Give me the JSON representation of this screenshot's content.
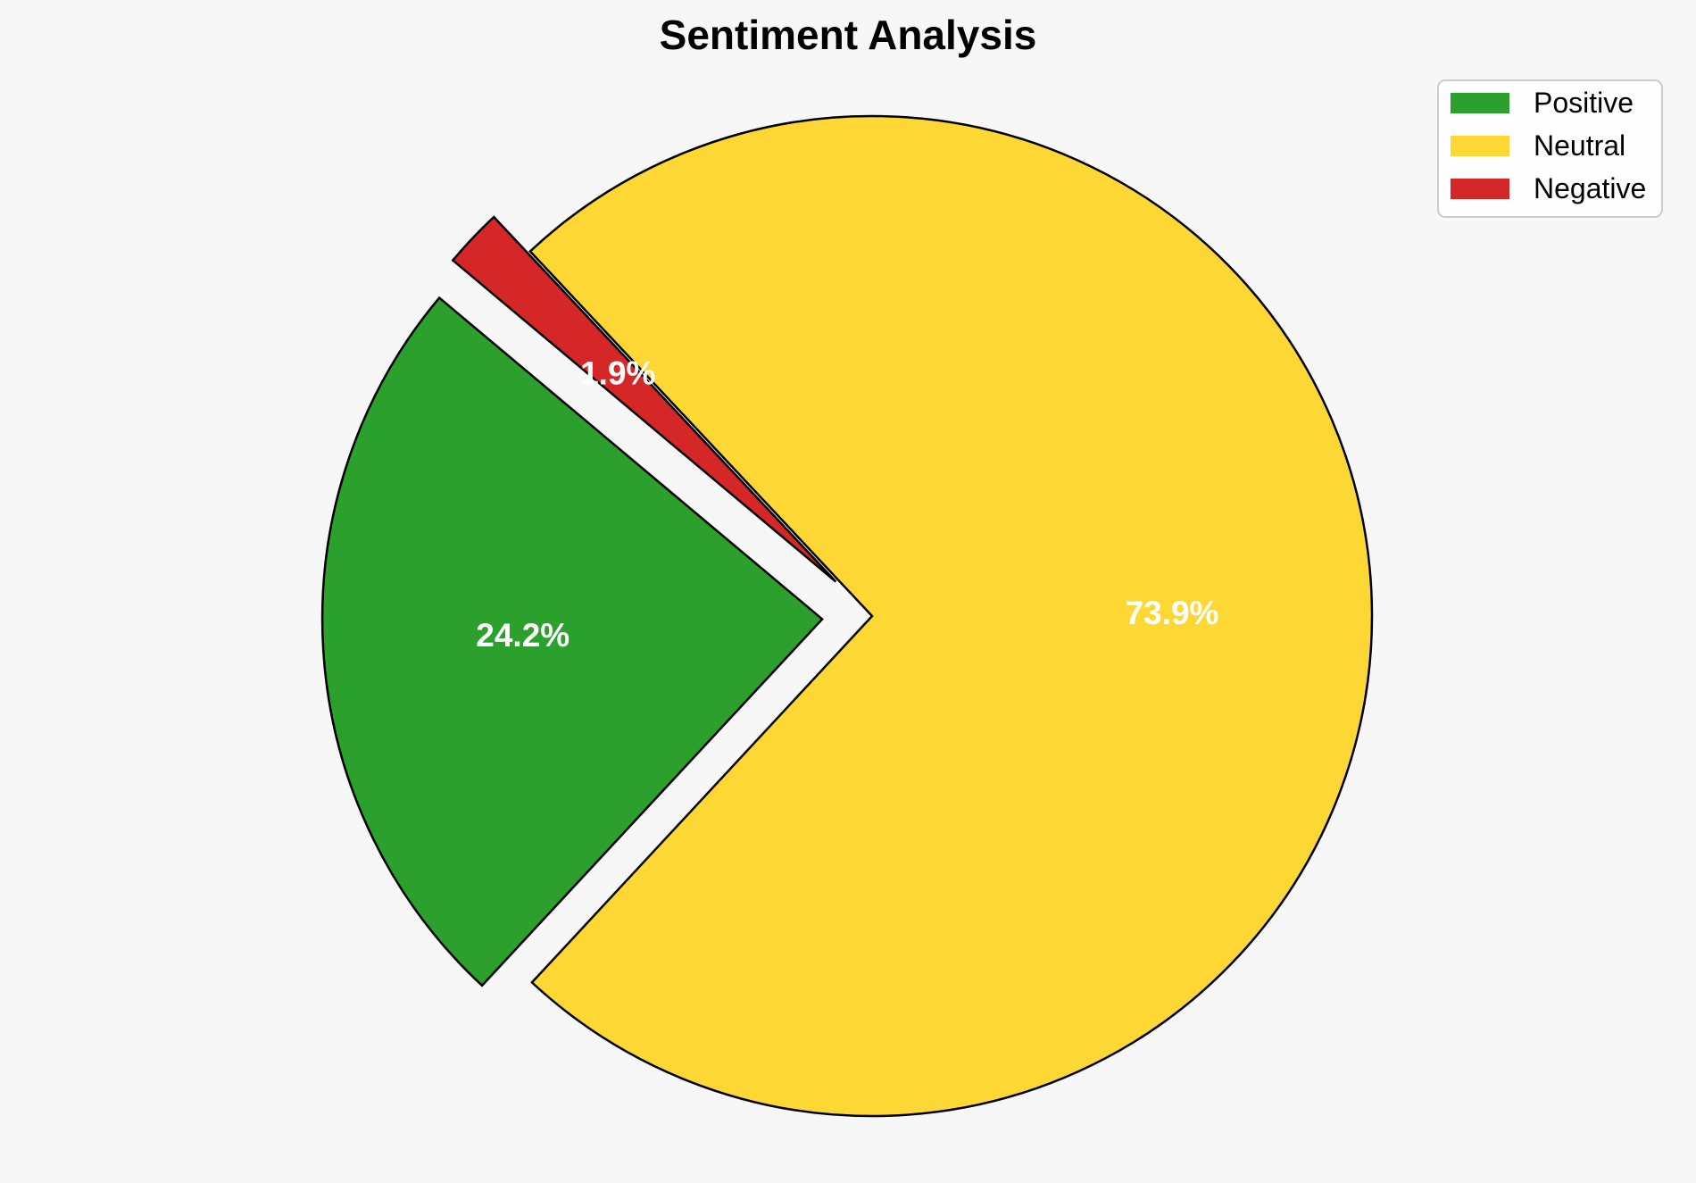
{
  "chart_data": {
    "type": "pie",
    "title": "Sentiment Analysis",
    "labels": [
      "Positive",
      "Neutral",
      "Negative"
    ],
    "values": [
      24.2,
      73.9,
      1.9
    ],
    "value_labels": [
      "24.2%",
      "73.9%",
      "1.9%"
    ],
    "colors": [
      "#2ca02c",
      "#fdd835",
      "#d62728"
    ],
    "exploded": [
      "Positive",
      "Negative"
    ],
    "legend_position": "top-right"
  }
}
